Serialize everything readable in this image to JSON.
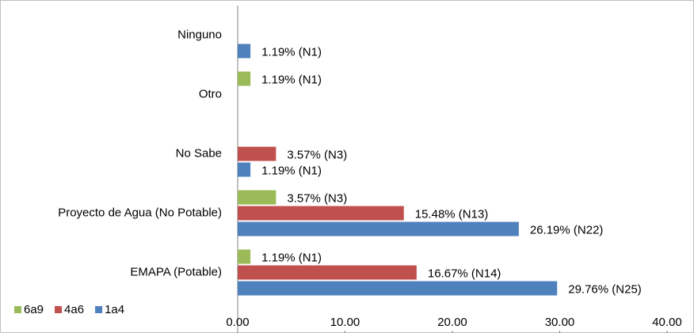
{
  "chart_data": {
    "type": "bar",
    "orientation": "horizontal",
    "categories": [
      "EMAPA (Potable)",
      "Proyecto de Agua (No Potable)",
      "No Sabe",
      "Otro",
      "Ninguno"
    ],
    "series": [
      {
        "name": "6a9",
        "color": "#9bbb59",
        "values": [
          1.19,
          3.57,
          null,
          1.19,
          null
        ],
        "value_labels": [
          "1.19% (N1)",
          "3.57% (N3)",
          null,
          "1.19% (N1)",
          null
        ]
      },
      {
        "name": "4a6",
        "color": "#c0504d",
        "values": [
          16.67,
          15.48,
          3.57,
          null,
          null
        ],
        "value_labels": [
          "16.67% (N14)",
          "15.48% (N13)",
          "3.57% (N3)",
          null,
          null
        ]
      },
      {
        "name": "1a4",
        "color": "#4f81bd",
        "values": [
          29.76,
          26.19,
          1.19,
          null,
          1.19
        ],
        "value_labels": [
          "29.76% (N25)",
          "26.19% (N22)",
          "1.19% (N1)",
          null,
          "1.19% (N1)"
        ]
      }
    ],
    "xlim": [
      0,
      40
    ],
    "xticks": [
      {
        "value": 0,
        "label": "0.00"
      },
      {
        "value": 10,
        "label": "10.00"
      },
      {
        "value": 20,
        "label": "20.00"
      },
      {
        "value": 30,
        "label": "30.00"
      },
      {
        "value": 40,
        "label": "40.00"
      }
    ],
    "legend": "bottom-left"
  }
}
